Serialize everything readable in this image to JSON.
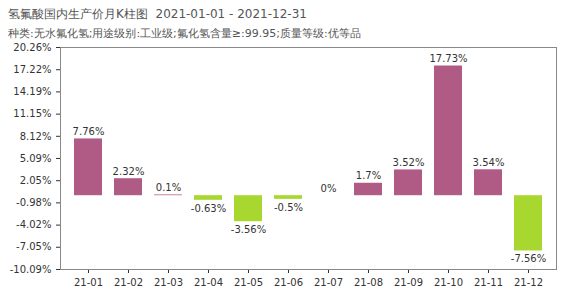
{
  "chart_data": {
    "type": "bar",
    "title": "氢氟酸国内生产价月K柱图  2021-01-01 - 2021-12-31",
    "subtitle": "种类:无水氟化氢;用途级别:工业级;氟化氢含量≥:99.95;质量等级:优等品",
    "categories": [
      "21-01",
      "21-02",
      "21-03",
      "21-04",
      "21-05",
      "21-06",
      "21-07",
      "21-08",
      "21-09",
      "21-10",
      "21-11",
      "21-12"
    ],
    "values": [
      7.76,
      2.32,
      0.1,
      -0.63,
      -3.56,
      -0.5,
      0,
      1.7,
      3.52,
      17.73,
      3.54,
      -7.56
    ],
    "value_labels": [
      "7.76%",
      "2.32%",
      "0.1%",
      "-0.63%",
      "-3.56%",
      "-0.5%",
      "0%",
      "1.7%",
      "3.52%",
      "17.73%",
      "3.54%",
      "-7.56%"
    ],
    "colors": [
      "#b05a86",
      "#b05a86",
      "#b05a86",
      "#a8d830",
      "#a8d830",
      "#a8d830",
      "#b05a86",
      "#b05a86",
      "#b05a86",
      "#b05a86",
      "#b05a86",
      "#a8d830"
    ],
    "ylim": [
      -10.09,
      20.26
    ],
    "yticks": [
      {
        "value": 20.26,
        "label": "20.26%"
      },
      {
        "value": 17.22,
        "label": "17.22%"
      },
      {
        "value": 14.19,
        "label": "14.19%"
      },
      {
        "value": 11.15,
        "label": "11.15%"
      },
      {
        "value": 8.12,
        "label": "8.12%"
      },
      {
        "value": 5.09,
        "label": "5.09%"
      },
      {
        "value": 2.05,
        "label": "2.05%"
      },
      {
        "value": -0.98,
        "label": "-0.98%"
      },
      {
        "value": -4.02,
        "label": "-4.02%"
      },
      {
        "value": -7.05,
        "label": "-7.05%"
      },
      {
        "value": -10.09,
        "label": "-10.09%"
      }
    ],
    "grid": false,
    "data_labels": true
  }
}
